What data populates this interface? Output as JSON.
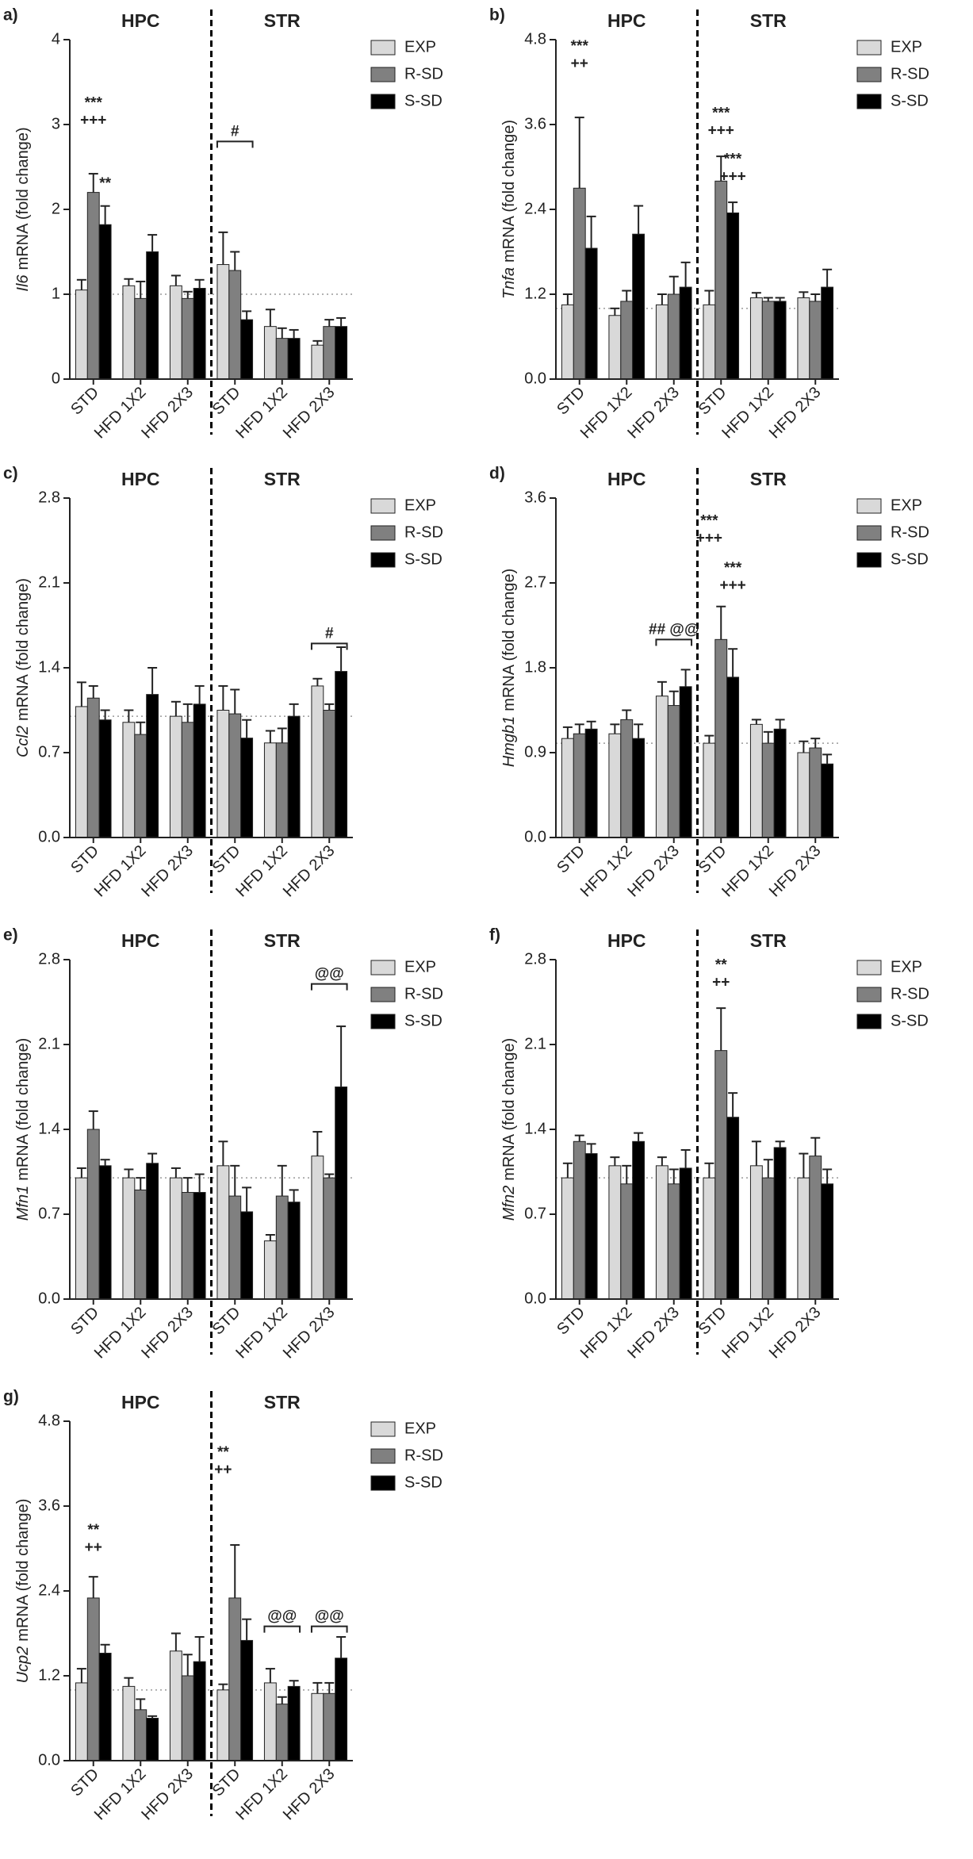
{
  "chart_data": [
    {
      "type": "bar",
      "panel": "a)",
      "ylabel_gene": "Il6",
      "ylabel": "mRNA (fold change)",
      "regions": [
        "HPC",
        "STR"
      ],
      "categories": [
        "STD",
        "HFD 1X2",
        "HFD 2X3",
        "STD",
        "HFD 1X2",
        "HFD 2X3"
      ],
      "series": [
        {
          "name": "EXP",
          "color": "#d9d9d9",
          "values": [
            1.05,
            1.1,
            1.1,
            1.35,
            0.62,
            0.4
          ],
          "errors": [
            0.12,
            0.08,
            0.12,
            0.38,
            0.2,
            0.05
          ]
        },
        {
          "name": "R-SD",
          "color": "#808080",
          "values": [
            2.2,
            0.95,
            0.95,
            1.28,
            0.48,
            0.62
          ],
          "errors": [
            0.22,
            0.2,
            0.08,
            0.22,
            0.12,
            0.08
          ]
        },
        {
          "name": "S-SD",
          "color": "#000000",
          "values": [
            1.82,
            1.5,
            1.07,
            0.7,
            0.48,
            0.62
          ],
          "errors": [
            0.22,
            0.2,
            0.1,
            0.1,
            0.1,
            0.1
          ]
        }
      ],
      "ylim": [
        0,
        4
      ],
      "yticks": [
        0,
        1,
        2,
        3,
        4
      ],
      "reference_line": 1,
      "annotations": [
        {
          "text": [
            "***",
            "+++"
          ],
          "category": 0,
          "series": "R-SD",
          "y": 3.25
        },
        {
          "text": [
            "**"
          ],
          "category": 0,
          "series": "S-SD",
          "y": 2.3
        }
      ],
      "brackets": [
        {
          "text": "#",
          "from": 3,
          "to": 3,
          "y": 2.8
        }
      ]
    },
    {
      "type": "bar",
      "panel": "b)",
      "ylabel_gene": "Tnfa",
      "ylabel": "mRNA (fold change)",
      "regions": [
        "HPC",
        "STR"
      ],
      "categories": [
        "STD",
        "HFD 1X2",
        "HFD 2X3",
        "STD",
        "HFD 1X2",
        "HFD 2X3"
      ],
      "series": [
        {
          "name": "EXP",
          "color": "#d9d9d9",
          "values": [
            1.05,
            0.9,
            1.05,
            1.05,
            1.15,
            1.15
          ],
          "errors": [
            0.15,
            0.1,
            0.15,
            0.2,
            0.07,
            0.08
          ]
        },
        {
          "name": "R-SD",
          "color": "#808080",
          "values": [
            2.7,
            1.1,
            1.2,
            2.8,
            1.1,
            1.1
          ],
          "errors": [
            1.0,
            0.15,
            0.25,
            0.35,
            0.05,
            0.1
          ]
        },
        {
          "name": "S-SD",
          "color": "#000000",
          "values": [
            1.85,
            2.05,
            1.3,
            2.35,
            1.1,
            1.3
          ],
          "errors": [
            0.45,
            0.4,
            0.35,
            0.15,
            0.05,
            0.25
          ]
        }
      ],
      "ylim": [
        0,
        4.8
      ],
      "yticks": [
        {
          "value": 0,
          "label": "0.0"
        },
        1.2,
        2.4,
        3.6,
        4.8
      ],
      "reference_line": 1,
      "annotations": [
        {
          "text": [
            "***",
            "++"
          ],
          "category": 0,
          "series": "R-SD",
          "y": 4.7
        },
        {
          "text": [
            "***",
            "+++"
          ],
          "category": 3,
          "series": "R-SD",
          "y": 3.75
        },
        {
          "text": [
            "***",
            "+++"
          ],
          "category": 3,
          "series": "S-SD",
          "y": 3.1
        }
      ],
      "brackets": []
    },
    {
      "type": "bar",
      "panel": "c)",
      "ylabel_gene": "Ccl2",
      "ylabel": "mRNA (fold change)",
      "regions": [
        "HPC",
        "STR"
      ],
      "categories": [
        "STD",
        "HFD 1X2",
        "HFD 2X3",
        "STD",
        "HFD 1X2",
        "HFD 2X3"
      ],
      "series": [
        {
          "name": "EXP",
          "color": "#d9d9d9",
          "values": [
            1.08,
            0.95,
            1.0,
            1.05,
            0.78,
            1.25
          ],
          "errors": [
            0.2,
            0.1,
            0.12,
            0.2,
            0.1,
            0.06
          ]
        },
        {
          "name": "R-SD",
          "color": "#808080",
          "values": [
            1.15,
            0.85,
            0.95,
            1.02,
            0.78,
            1.05
          ],
          "errors": [
            0.1,
            0.1,
            0.15,
            0.2,
            0.12,
            0.05
          ]
        },
        {
          "name": "S-SD",
          "color": "#000000",
          "values": [
            0.97,
            1.18,
            1.1,
            0.82,
            1.0,
            1.37
          ],
          "errors": [
            0.08,
            0.22,
            0.15,
            0.15,
            0.1,
            0.2
          ]
        }
      ],
      "ylim": [
        0,
        2.8
      ],
      "yticks": [
        {
          "value": 0,
          "label": "0.0"
        },
        0.7,
        1.4,
        2.1,
        2.8
      ],
      "reference_line": 1,
      "annotations": [],
      "brackets": [
        {
          "text": "#",
          "from": 5,
          "to": 5,
          "y": 1.6
        }
      ]
    },
    {
      "type": "bar",
      "panel": "d)",
      "ylabel_gene": "Hmgb1",
      "ylabel": "mRNA (fold change)",
      "regions": [
        "HPC",
        "STR"
      ],
      "categories": [
        "STD",
        "HFD 1X2",
        "HFD 2X3",
        "STD",
        "HFD 1X2",
        "HFD 2X3"
      ],
      "series": [
        {
          "name": "EXP",
          "color": "#d9d9d9",
          "values": [
            1.05,
            1.1,
            1.5,
            1.0,
            1.2,
            0.9
          ],
          "errors": [
            0.12,
            0.1,
            0.15,
            0.08,
            0.05,
            0.12
          ]
        },
        {
          "name": "R-SD",
          "color": "#808080",
          "values": [
            1.1,
            1.25,
            1.4,
            2.1,
            1.0,
            0.95
          ],
          "errors": [
            0.1,
            0.1,
            0.15,
            0.35,
            0.12,
            0.1
          ]
        },
        {
          "name": "S-SD",
          "color": "#000000",
          "values": [
            1.15,
            1.05,
            1.6,
            1.7,
            1.15,
            0.78
          ],
          "errors": [
            0.08,
            0.15,
            0.18,
            0.3,
            0.1,
            0.1
          ]
        }
      ],
      "ylim": [
        0,
        3.6
      ],
      "yticks": [
        {
          "value": 0,
          "label": "0.0"
        },
        0.9,
        1.8,
        2.7,
        3.6
      ],
      "reference_line": 1,
      "annotations": [
        {
          "text": [
            "***",
            "+++"
          ],
          "category": 3,
          "series": "EXP",
          "y": 3.35
        },
        {
          "text": [
            "***",
            "+++"
          ],
          "category": 3,
          "series": "S-SD",
          "y": 2.85
        }
      ],
      "brackets": [
        {
          "text": "## @@",
          "from": 2,
          "to": 2,
          "y": 2.1
        }
      ]
    },
    {
      "type": "bar",
      "panel": "e)",
      "ylabel_gene": "Mfn1",
      "ylabel": "mRNA (fold change)",
      "regions": [
        "HPC",
        "STR"
      ],
      "categories": [
        "STD",
        "HFD 1X2",
        "HFD 2X3",
        "STD",
        "HFD 1X2",
        "HFD 2X3"
      ],
      "series": [
        {
          "name": "EXP",
          "color": "#d9d9d9",
          "values": [
            1.0,
            1.0,
            1.0,
            1.1,
            0.48,
            1.18
          ],
          "errors": [
            0.08,
            0.07,
            0.08,
            0.2,
            0.05,
            0.2
          ]
        },
        {
          "name": "R-SD",
          "color": "#808080",
          "values": [
            1.4,
            0.9,
            0.88,
            0.85,
            0.85,
            1.0
          ],
          "errors": [
            0.15,
            0.1,
            0.12,
            0.25,
            0.25,
            0.03
          ]
        },
        {
          "name": "S-SD",
          "color": "#000000",
          "values": [
            1.1,
            1.12,
            0.88,
            0.72,
            0.8,
            1.75
          ],
          "errors": [
            0.05,
            0.08,
            0.15,
            0.2,
            0.1,
            0.5
          ]
        }
      ],
      "ylim": [
        0,
        2.8
      ],
      "yticks": [
        {
          "value": 0,
          "label": "0.0"
        },
        0.7,
        1.4,
        2.1,
        2.8
      ],
      "reference_line": 1,
      "annotations": [],
      "brackets": [
        {
          "text": "@@",
          "from": 5,
          "to": 5,
          "y": 2.6
        }
      ]
    },
    {
      "type": "bar",
      "panel": "f)",
      "ylabel_gene": "Mfn2",
      "ylabel": "mRNA (fold change)",
      "regions": [
        "HPC",
        "STR"
      ],
      "categories": [
        "STD",
        "HFD 1X2",
        "HFD 2X3",
        "STD",
        "HFD 1X2",
        "HFD 2X3"
      ],
      "series": [
        {
          "name": "EXP",
          "color": "#d9d9d9",
          "values": [
            1.0,
            1.1,
            1.1,
            1.0,
            1.1,
            1.0
          ],
          "errors": [
            0.12,
            0.07,
            0.07,
            0.12,
            0.2,
            0.2
          ]
        },
        {
          "name": "R-SD",
          "color": "#808080",
          "values": [
            1.3,
            0.95,
            0.95,
            2.05,
            1.0,
            1.18
          ],
          "errors": [
            0.05,
            0.15,
            0.12,
            0.35,
            0.15,
            0.15
          ]
        },
        {
          "name": "S-SD",
          "color": "#000000",
          "values": [
            1.2,
            1.3,
            1.08,
            1.5,
            1.25,
            0.95
          ],
          "errors": [
            0.08,
            0.07,
            0.15,
            0.2,
            0.05,
            0.12
          ]
        }
      ],
      "ylim": [
        0,
        2.8
      ],
      "yticks": [
        {
          "value": 0,
          "label": "0.0"
        },
        0.7,
        1.4,
        2.1,
        2.8
      ],
      "reference_line": 1,
      "annotations": [
        {
          "text": [
            "**",
            "++"
          ],
          "category": 3,
          "series": "R-SD",
          "y": 2.75
        }
      ],
      "brackets": []
    },
    {
      "type": "bar",
      "panel": "g)",
      "ylabel_gene": "Ucp2",
      "ylabel": "mRNA (fold change)",
      "regions": [
        "HPC",
        "STR"
      ],
      "categories": [
        "STD",
        "HFD 1X2",
        "HFD 2X3",
        "STD",
        "HFD 1X2",
        "HFD 2X3"
      ],
      "series": [
        {
          "name": "EXP",
          "color": "#d9d9d9",
          "values": [
            1.1,
            1.05,
            1.55,
            1.0,
            1.1,
            0.95
          ],
          "errors": [
            0.2,
            0.12,
            0.25,
            0.08,
            0.2,
            0.15
          ]
        },
        {
          "name": "R-SD",
          "color": "#808080",
          "values": [
            2.3,
            0.72,
            1.2,
            2.3,
            0.8,
            0.95
          ],
          "errors": [
            0.3,
            0.15,
            0.3,
            0.75,
            0.1,
            0.15
          ]
        },
        {
          "name": "S-SD",
          "color": "#000000",
          "values": [
            1.52,
            0.6,
            1.4,
            1.7,
            1.05,
            1.45
          ],
          "errors": [
            0.12,
            0.03,
            0.35,
            0.3,
            0.08,
            0.3
          ]
        }
      ],
      "ylim": [
        0,
        4.8
      ],
      "yticks": [
        {
          "value": 0,
          "label": "0.0"
        },
        1.2,
        2.4,
        3.6,
        4.8
      ],
      "reference_line": 1,
      "annotations": [
        {
          "text": [
            "**",
            "++"
          ],
          "category": 0,
          "series": "R-SD",
          "y": 3.25
        },
        {
          "text": [
            "**",
            "++"
          ],
          "category": 3,
          "series": "EXP",
          "y": 4.35
        }
      ],
      "brackets": [
        {
          "text": "@@",
          "from": 4,
          "to": 4,
          "y": 1.9
        },
        {
          "text": "@@",
          "from": 5,
          "to": 5,
          "y": 1.9
        }
      ]
    }
  ]
}
